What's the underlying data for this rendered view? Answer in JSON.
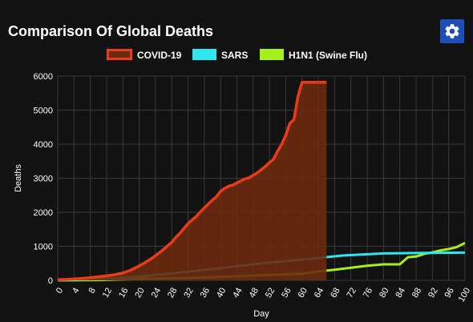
{
  "header": {
    "title": "Comparison Of Global Deaths",
    "settings_icon": "gear-icon"
  },
  "colors": {
    "background": "#121212",
    "grid": "#3a3a3a",
    "covid": "#ea3c14",
    "covid_fill": "#6b2a10",
    "sars": "#2de6f0",
    "h1n1": "#a6f01a",
    "settings_button": "#1e4fb8"
  },
  "chart_data": {
    "type": "line",
    "title": "Comparison Of Global Deaths",
    "xlabel": "Day",
    "ylabel": "Deaths",
    "xlim": [
      0,
      100
    ],
    "ylim": [
      0,
      6000
    ],
    "xticks": [
      0,
      4,
      8,
      12,
      16,
      20,
      24,
      28,
      32,
      36,
      40,
      44,
      48,
      52,
      56,
      60,
      64,
      68,
      72,
      76,
      80,
      84,
      88,
      92,
      96,
      100
    ],
    "yticks": [
      0,
      1000,
      2000,
      3000,
      4000,
      5000,
      6000
    ],
    "grid": true,
    "legend_position": "top",
    "series": [
      {
        "name": "COVID-19",
        "fill": true,
        "x": [
          0,
          2,
          4,
          6,
          8,
          10,
          12,
          14,
          16,
          17,
          18,
          19,
          20,
          21,
          22,
          23,
          24,
          25,
          26,
          27,
          28,
          29,
          30,
          31,
          32,
          33,
          34,
          35,
          36,
          37,
          38,
          39,
          40,
          41,
          42,
          43,
          44,
          45,
          46,
          47,
          48,
          49,
          50,
          51,
          52,
          53,
          54,
          55,
          56,
          57,
          58,
          59,
          60,
          61,
          62,
          63,
          64,
          65,
          66
        ],
        "values": [
          17,
          25,
          41,
          56,
          80,
          106,
          132,
          170,
          213,
          259,
          304,
          362,
          426,
          492,
          565,
          638,
          724,
          813,
          910,
          1018,
          1115,
          1261,
          1383,
          1526,
          1669,
          1775,
          1873,
          2009,
          2126,
          2247,
          2360,
          2460,
          2618,
          2704,
          2769,
          2800,
          2858,
          2924,
          2981,
          3015,
          3089,
          3160,
          3254,
          3348,
          3460,
          3558,
          3803,
          3996,
          4262,
          4615,
          4720,
          5404,
          5819,
          5819,
          5819,
          5819,
          5819,
          5819,
          5819
        ],
        "x_override_note": ""
      },
      {
        "name": "SARS",
        "fill": false,
        "x": [
          0,
          10,
          20,
          30,
          40,
          50,
          60,
          70,
          80,
          90,
          100
        ],
        "values": [
          0,
          40,
          110,
          230,
          360,
          500,
          610,
          730,
          790,
          805,
          815
        ]
      },
      {
        "name": "H1N1 (Swine Flu)",
        "fill": false,
        "x": [
          0,
          10,
          20,
          30,
          40,
          50,
          60,
          64,
          68,
          72,
          76,
          80,
          84,
          86,
          88,
          90,
          92,
          94,
          96,
          98,
          100
        ],
        "values": [
          0,
          10,
          40,
          60,
          100,
          150,
          190,
          260,
          310,
          370,
          430,
          470,
          470,
          680,
          700,
          780,
          820,
          880,
          920,
          980,
          1100
        ]
      }
    ]
  }
}
